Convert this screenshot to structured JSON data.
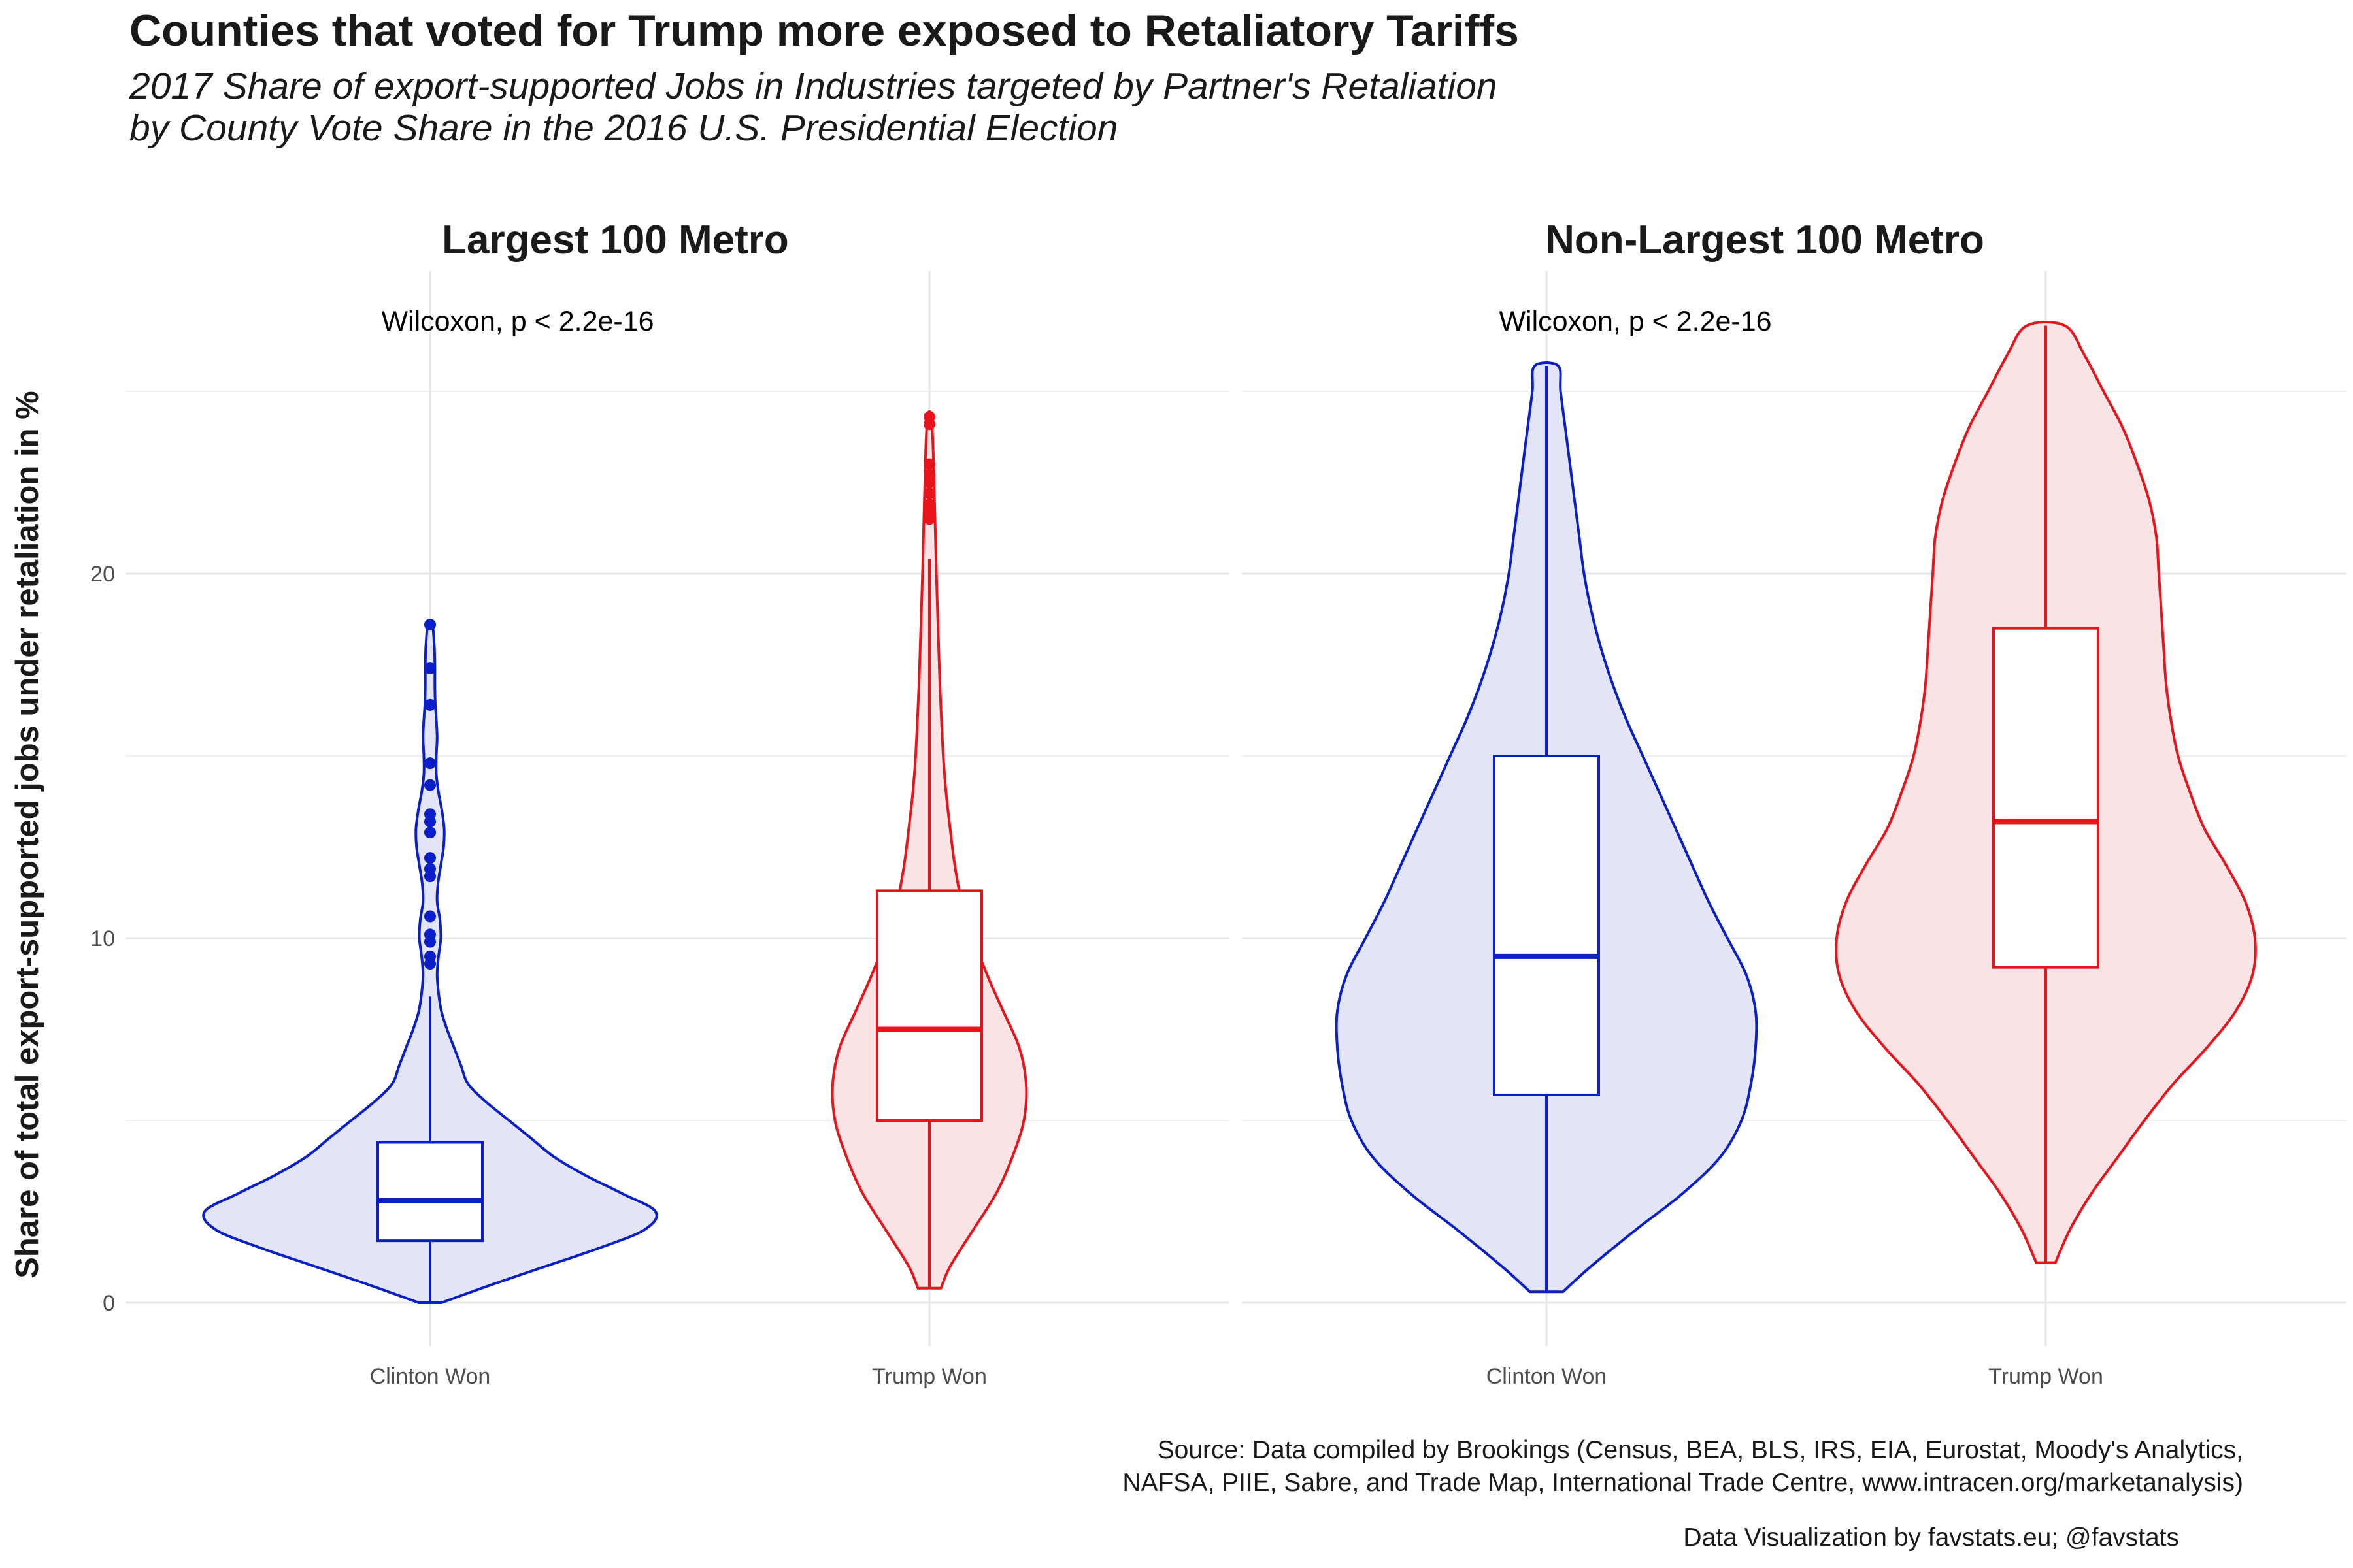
{
  "title": "Counties that voted for Trump more exposed to Retaliatory Tariffs",
  "subtitle_line1": "2017 Share of export-supported Jobs in Industries targeted by Partner's Retaliation",
  "subtitle_line2": "by County Vote Share in the 2016 U.S. Presidential Election",
  "caption_line1": "Source: Data compiled by Brookings (Census, BEA, BLS, IRS, EIA, Eurostat, Moody's Analytics,",
  "caption_line2": "NAFSA, PIIE, Sabre, and Trade Map, International Trade Centre, www.intracen.org/marketanalysis)",
  "credit": "Data Visualization by favstats.eu; @favstats",
  "colors": {
    "clinton": "#0a1fc7",
    "clinton_fill": "#e3e4f6",
    "trump": "#e8141c",
    "trump_fill": "#f9e3e4",
    "grid": "#e6e6e6",
    "grid_minor": "#f0f0f0"
  },
  "chart_data": {
    "type": "violin",
    "ylabel": "Share of total export-supported jobs under retaliation in %",
    "xlabel": "",
    "ylim": [
      -1.2,
      28.5
    ],
    "y_ticks": [
      0,
      10,
      20
    ],
    "categories": [
      "Clinton Won",
      "Trump Won"
    ],
    "panels": [
      {
        "title": "Largest 100 Metro",
        "annotation": "Wilcoxon, p < 2.2e-16",
        "groups": [
          {
            "name": "Clinton Won",
            "color_key": "clinton",
            "violin_profile": [
              [
                0,
                0.04
              ],
              [
                0.5,
                0.22
              ],
              [
                1,
                0.41
              ],
              [
                1.5,
                0.6
              ],
              [
                2,
                0.76
              ],
              [
                2.5,
                0.8
              ],
              [
                3,
                0.68
              ],
              [
                3.5,
                0.55
              ],
              [
                4,
                0.44
              ],
              [
                4.5,
                0.36
              ],
              [
                5,
                0.28
              ],
              [
                5.5,
                0.2
              ],
              [
                6,
                0.135
              ],
              [
                6.5,
                0.11
              ],
              [
                7,
                0.085
              ],
              [
                7.5,
                0.06
              ],
              [
                8,
                0.04
              ],
              [
                8.5,
                0.03
              ],
              [
                9,
                0.025
              ],
              [
                9.5,
                0.03
              ],
              [
                10,
                0.038
              ],
              [
                10.5,
                0.035
              ],
              [
                11,
                0.025
              ],
              [
                11.5,
                0.028
              ],
              [
                12,
                0.038
              ],
              [
                12.5,
                0.048
              ],
              [
                13,
                0.05
              ],
              [
                13.5,
                0.042
              ],
              [
                14,
                0.03
              ],
              [
                14.5,
                0.022
              ],
              [
                15,
                0.022
              ],
              [
                15.5,
                0.025
              ],
              [
                16,
                0.022
              ],
              [
                16.5,
                0.018
              ],
              [
                17,
                0.017
              ],
              [
                17.5,
                0.017
              ],
              [
                18,
                0.015
              ],
              [
                18.6,
                0.008
              ]
            ],
            "box": {
              "q1": 1.7,
              "median": 2.8,
              "q3": 4.4,
              "whisker_low": 0.0,
              "whisker_high": 8.4
            },
            "outliers": [
              9.3,
              9.5,
              9.9,
              10.1,
              10.6,
              11.7,
              11.9,
              12.2,
              12.9,
              13.2,
              13.4,
              14.2,
              14.8,
              16.4,
              17.4,
              18.6
            ]
          },
          {
            "name": "Trump Won",
            "color_key": "trump",
            "violin_profile": [
              [
                0.4,
                0.05
              ],
              [
                1,
                0.09
              ],
              [
                2,
                0.19
              ],
              [
                3,
                0.29
              ],
              [
                4,
                0.36
              ],
              [
                5,
                0.41
              ],
              [
                6,
                0.42
              ],
              [
                7,
                0.39
              ],
              [
                8,
                0.32
              ],
              [
                9,
                0.25
              ],
              [
                10,
                0.19
              ],
              [
                11,
                0.14
              ],
              [
                12,
                0.11
              ],
              [
                13,
                0.09
              ],
              [
                14,
                0.072
              ],
              [
                15,
                0.06
              ],
              [
                16,
                0.052
              ],
              [
                17,
                0.045
              ],
              [
                18,
                0.04
              ],
              [
                19,
                0.035
              ],
              [
                20,
                0.03
              ],
              [
                21,
                0.026
              ],
              [
                22,
                0.022
              ],
              [
                23,
                0.018
              ],
              [
                24,
                0.012
              ],
              [
                24.4,
                0.005
              ]
            ],
            "box": {
              "q1": 5.0,
              "median": 7.5,
              "q3": 11.3,
              "whisker_low": 0.4,
              "whisker_high": 20.4
            },
            "outliers": [
              21.5,
              21.7,
              21.9,
              22.2,
              22.5,
              22.7,
              23.0,
              24.1,
              24.3
            ]
          }
        ]
      },
      {
        "title": "Non-Largest 100 Metro",
        "annotation": "Wilcoxon, p < 2.2e-16",
        "groups": [
          {
            "name": "Clinton Won",
            "color_key": "clinton",
            "violin_profile": [
              [
                0.3,
                0.07
              ],
              [
                1,
                0.19
              ],
              [
                2,
                0.38
              ],
              [
                3,
                0.58
              ],
              [
                4,
                0.74
              ],
              [
                5,
                0.83
              ],
              [
                6,
                0.87
              ],
              [
                7,
                0.89
              ],
              [
                8,
                0.89
              ],
              [
                9,
                0.85
              ],
              [
                10,
                0.77
              ],
              [
                11,
                0.69
              ],
              [
                12,
                0.62
              ],
              [
                13,
                0.55
              ],
              [
                14,
                0.48
              ],
              [
                15,
                0.41
              ],
              [
                16,
                0.34
              ],
              [
                17,
                0.28
              ],
              [
                18,
                0.23
              ],
              [
                19,
                0.19
              ],
              [
                20,
                0.16
              ],
              [
                21,
                0.14
              ],
              [
                22,
                0.12
              ],
              [
                23,
                0.1
              ],
              [
                24,
                0.08
              ],
              [
                25,
                0.06
              ],
              [
                25.7,
                0.05
              ]
            ],
            "box": {
              "q1": 5.7,
              "median": 9.5,
              "q3": 15.0,
              "whisker_low": 0.3,
              "whisker_high": 25.7
            },
            "outliers": []
          },
          {
            "name": "Trump Won",
            "color_key": "trump",
            "violin_profile": [
              [
                1.1,
                0.04
              ],
              [
                2,
                0.1
              ],
              [
                3,
                0.19
              ],
              [
                4,
                0.3
              ],
              [
                5,
                0.41
              ],
              [
                6,
                0.53
              ],
              [
                7,
                0.67
              ],
              [
                8,
                0.79
              ],
              [
                9,
                0.86
              ],
              [
                10,
                0.87
              ],
              [
                11,
                0.83
              ],
              [
                12,
                0.75
              ],
              [
                13,
                0.66
              ],
              [
                14,
                0.6
              ],
              [
                15,
                0.55
              ],
              [
                16,
                0.52
              ],
              [
                17,
                0.5
              ],
              [
                18,
                0.49
              ],
              [
                19,
                0.48
              ],
              [
                20,
                0.47
              ],
              [
                21,
                0.46
              ],
              [
                22,
                0.43
              ],
              [
                23,
                0.38
              ],
              [
                24,
                0.32
              ],
              [
                25,
                0.24
              ],
              [
                26,
                0.16
              ],
              [
                26.8,
                0.08
              ]
            ],
            "box": {
              "q1": 9.2,
              "median": 13.2,
              "q3": 18.5,
              "whisker_low": 1.1,
              "whisker_high": 26.8
            },
            "outliers": []
          }
        ]
      }
    ]
  }
}
